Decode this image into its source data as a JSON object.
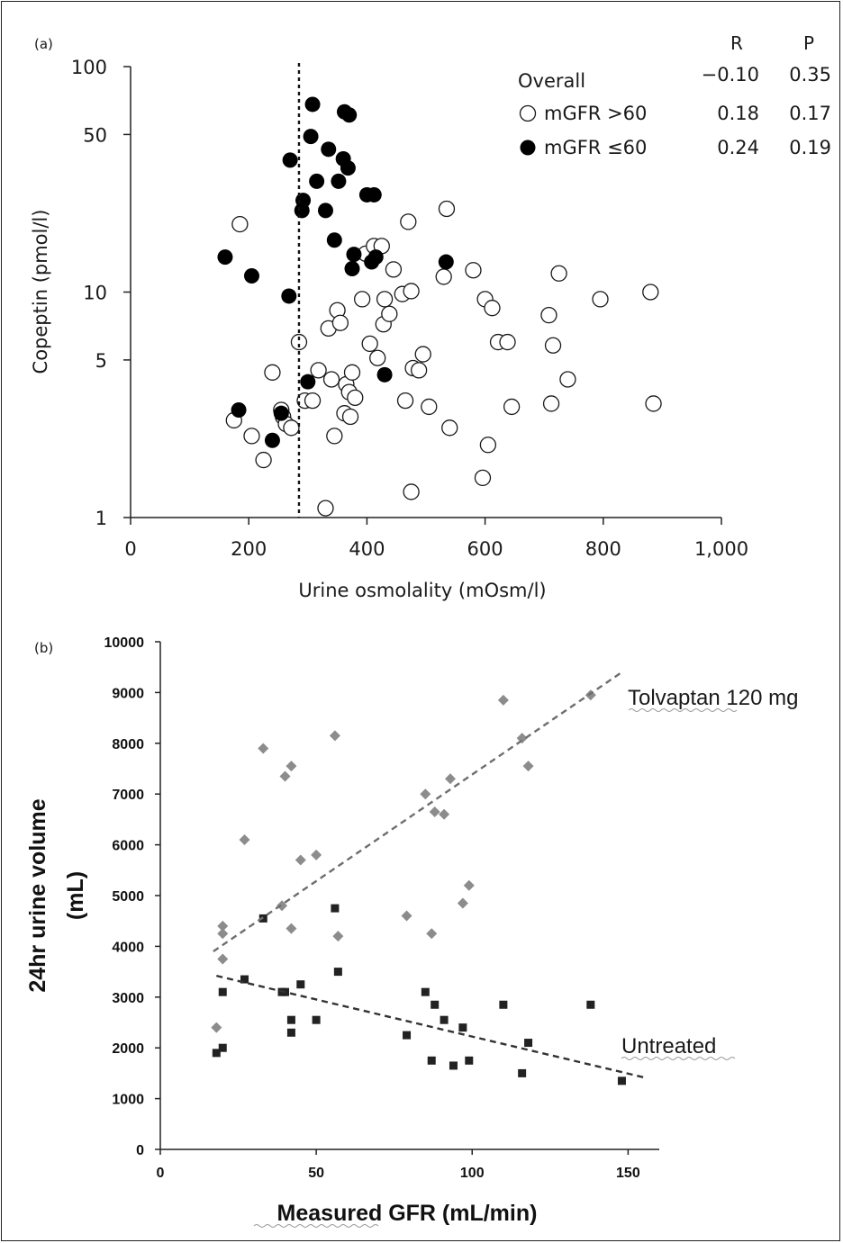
{
  "chart_data": [
    {
      "panel_label": "(a)",
      "type": "scatter",
      "xlabel": "Urine osmolality (mOsm/l)",
      "ylabel": "Copeptin (pmol/l)",
      "xlim": [
        0,
        1000
      ],
      "ylim": [
        1,
        100
      ],
      "yscale": "log",
      "x_ticks": [
        "0",
        "200",
        "400",
        "600",
        "800",
        "1,000"
      ],
      "y_ticks": [
        "1",
        "5",
        "10",
        "50",
        "100"
      ],
      "reference_line": {
        "x": 285,
        "style": "dotted"
      },
      "legend": {
        "position": "top-right",
        "header_r": "R",
        "header_p": "P",
        "rows": [
          {
            "label": "Overall",
            "marker": "none",
            "r": "−0.10",
            "p": "0.35"
          },
          {
            "label": "mGFR >60",
            "marker": "open-circle",
            "r": "0.18",
            "p": "0.17"
          },
          {
            "label": "mGFR ≤60",
            "marker": "filled-circle",
            "r": "0.24",
            "p": "0.19"
          }
        ]
      },
      "series": [
        {
          "name": "mGFR >60",
          "marker": "open-circle",
          "points": [
            [
              185,
              20
            ],
            [
              240,
              4.4
            ],
            [
              255,
              3
            ],
            [
              258,
              2.8
            ],
            [
              263,
              2.6
            ],
            [
              272,
              2.5
            ],
            [
              285,
              6
            ],
            [
              295,
              3.3
            ],
            [
              308,
              3.3
            ],
            [
              318,
              4.5
            ],
            [
              335,
              6.9
            ],
            [
              340,
              4.1
            ],
            [
              345,
              2.3
            ],
            [
              350,
              8.3
            ],
            [
              355,
              7.3
            ],
            [
              362,
              2.9
            ],
            [
              365,
              3.9
            ],
            [
              370,
              3.6
            ],
            [
              372,
              2.8
            ],
            [
              375,
              4.4
            ],
            [
              380,
              3.4
            ],
            [
              392,
              9.3
            ],
            [
              398,
              14.8
            ],
            [
              405,
              5.9
            ],
            [
              412,
              16
            ],
            [
              418,
              5.1
            ],
            [
              425,
              16
            ],
            [
              428,
              7.2
            ],
            [
              430,
              9.3
            ],
            [
              438,
              8
            ],
            [
              445,
              12.6
            ],
            [
              460,
              9.8
            ],
            [
              465,
              3.3
            ],
            [
              470,
              20.5
            ],
            [
              475,
              10.1
            ],
            [
              478,
              4.6
            ],
            [
              488,
              4.5
            ],
            [
              495,
              5.3
            ],
            [
              505,
              3.1
            ],
            [
              530,
              11.7
            ],
            [
              535,
              23.4
            ],
            [
              540,
              2.5
            ],
            [
              580,
              12.5
            ],
            [
              596,
              1.5
            ],
            [
              600,
              9.3
            ],
            [
              605,
              2.1
            ],
            [
              612,
              8.5
            ],
            [
              622,
              6
            ],
            [
              638,
              6
            ],
            [
              645,
              3.1
            ],
            [
              708,
              7.9
            ],
            [
              712,
              3.2
            ],
            [
              715,
              5.8
            ],
            [
              725,
              12.1
            ],
            [
              740,
              4.1
            ],
            [
              795,
              9.3
            ],
            [
              880,
              10
            ],
            [
              885,
              3.2
            ],
            [
              330,
              1.1
            ],
            [
              475,
              1.3
            ],
            [
              225,
              1.8
            ],
            [
              175,
              2.7
            ],
            [
              205,
              2.3
            ]
          ]
        },
        {
          "name": "mGFR ≤60",
          "marker": "filled-circle",
          "points": [
            [
              160,
              14.3
            ],
            [
              205,
              11.8
            ],
            [
              268,
              9.6
            ],
            [
              183,
              3
            ],
            [
              240,
              2.2
            ],
            [
              255,
              2.9
            ],
            [
              270,
              38.5
            ],
            [
              290,
              23
            ],
            [
              292,
              25.5
            ],
            [
              300,
              4
            ],
            [
              305,
              49
            ],
            [
              308,
              68
            ],
            [
              315,
              31
            ],
            [
              330,
              23
            ],
            [
              335,
              43
            ],
            [
              345,
              17
            ],
            [
              352,
              31
            ],
            [
              360,
              39
            ],
            [
              362,
              63
            ],
            [
              368,
              35.5
            ],
            [
              370,
              61
            ],
            [
              375,
              12.7
            ],
            [
              378,
              14.7
            ],
            [
              400,
              27
            ],
            [
              408,
              13.6
            ],
            [
              412,
              27
            ],
            [
              415,
              14.3
            ],
            [
              430,
              4.3
            ],
            [
              534,
              13.6
            ]
          ]
        }
      ]
    },
    {
      "panel_label": "(b)",
      "type": "scatter",
      "xlabel": "Measured GFR (mL/min)",
      "ylabel": "24hr urine volume (mL)",
      "xlim": [
        0,
        160
      ],
      "ylim": [
        0,
        10000
      ],
      "x_ticks": [
        "0",
        "50",
        "100",
        "150"
      ],
      "y_ticks": [
        "0",
        "1000",
        "2000",
        "3000",
        "4000",
        "5000",
        "6000",
        "7000",
        "8000",
        "9000",
        "10000"
      ],
      "series": [
        {
          "name": "Tolvaptan 120 mg",
          "marker": "diamond",
          "color": "#8c8c8c",
          "points": [
            [
              18,
              2400
            ],
            [
              20,
              4400
            ],
            [
              20,
              4250
            ],
            [
              20,
              3750
            ],
            [
              27,
              6100
            ],
            [
              33,
              7900
            ],
            [
              39,
              4800
            ],
            [
              40,
              7350
            ],
            [
              42,
              7550
            ],
            [
              42,
              4350
            ],
            [
              45,
              5700
            ],
            [
              50,
              5800
            ],
            [
              56,
              8150
            ],
            [
              57,
              4200
            ],
            [
              79,
              4600
            ],
            [
              85,
              7000
            ],
            [
              87,
              4250
            ],
            [
              88,
              6650
            ],
            [
              91,
              6600
            ],
            [
              93,
              7300
            ],
            [
              97,
              4850
            ],
            [
              99,
              5200
            ],
            [
              110,
              8850
            ],
            [
              116,
              8100
            ],
            [
              118,
              7550
            ],
            [
              138,
              8950
            ]
          ],
          "trend": [
            [
              17,
              3900
            ],
            [
              148,
              9400
            ]
          ]
        },
        {
          "name": "Untreated",
          "marker": "square",
          "color": "#222222",
          "points": [
            [
              18,
              1900
            ],
            [
              20,
              2000
            ],
            [
              20,
              3100
            ],
            [
              27,
              3350
            ],
            [
              33,
              4550
            ],
            [
              39,
              3100
            ],
            [
              40,
              3100
            ],
            [
              42,
              2550
            ],
            [
              42,
              2300
            ],
            [
              45,
              3250
            ],
            [
              50,
              2550
            ],
            [
              56,
              4750
            ],
            [
              57,
              3500
            ],
            [
              79,
              2250
            ],
            [
              85,
              3100
            ],
            [
              87,
              1750
            ],
            [
              88,
              2850
            ],
            [
              91,
              2550
            ],
            [
              94,
              1650
            ],
            [
              97,
              2400
            ],
            [
              99,
              1750
            ],
            [
              110,
              2850
            ],
            [
              116,
              1500
            ],
            [
              118,
              2100
            ],
            [
              138,
              2850
            ],
            [
              148,
              1350
            ]
          ],
          "trend": [
            [
              18,
              3420
            ],
            [
              155,
              1420
            ]
          ]
        }
      ],
      "annotations": [
        "Tolvaptan  120 mg",
        "Untreated"
      ]
    }
  ]
}
